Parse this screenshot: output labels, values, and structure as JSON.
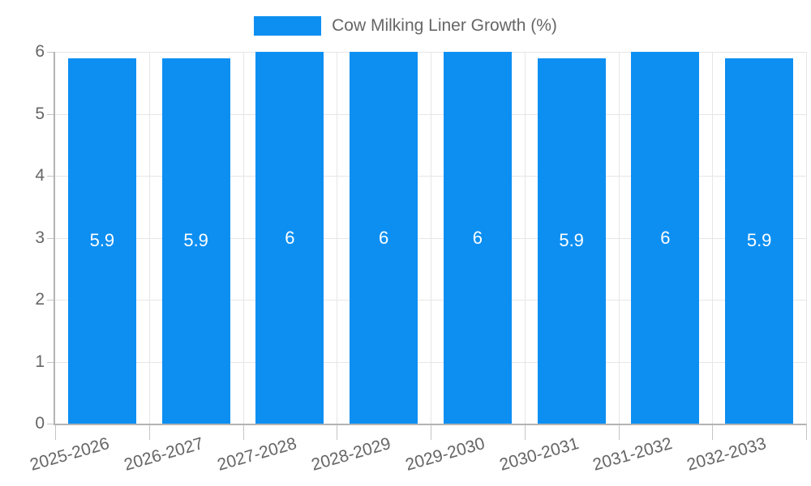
{
  "legend": {
    "label": "Cow Milking Liner Growth (%)"
  },
  "chart_data": {
    "type": "bar",
    "title": "Cow Milking Liner Growth (%)",
    "categories": [
      "2025-2026",
      "2026-2027",
      "2027-2028",
      "2028-2029",
      "2029-2030",
      "2030-2031",
      "2031-2032",
      "2032-2033"
    ],
    "series": [
      {
        "name": "Cow Milking Liner Growth (%)",
        "values": [
          5.9,
          5.9,
          6,
          6,
          6,
          5.9,
          6,
          5.9
        ],
        "bar_labels": [
          "5.9",
          "5.9",
          "6",
          "6",
          "6",
          "5.9",
          "6",
          "5.9"
        ]
      }
    ],
    "xlabel": "",
    "ylabel": "",
    "ylim": [
      0,
      6
    ],
    "yticks": [
      0,
      1,
      2,
      3,
      4,
      5,
      6
    ],
    "grid": true,
    "legend_position": "top-center",
    "x_label_rotation_deg": -16
  },
  "colors": {
    "bar": "#0d8ff2",
    "grid": "#e6e6e6",
    "axis": "#b3b3b3",
    "tick": "#c4c4c4",
    "text": "#666666",
    "bar_label_text": "#ffffff",
    "background": "#ffffff"
  }
}
